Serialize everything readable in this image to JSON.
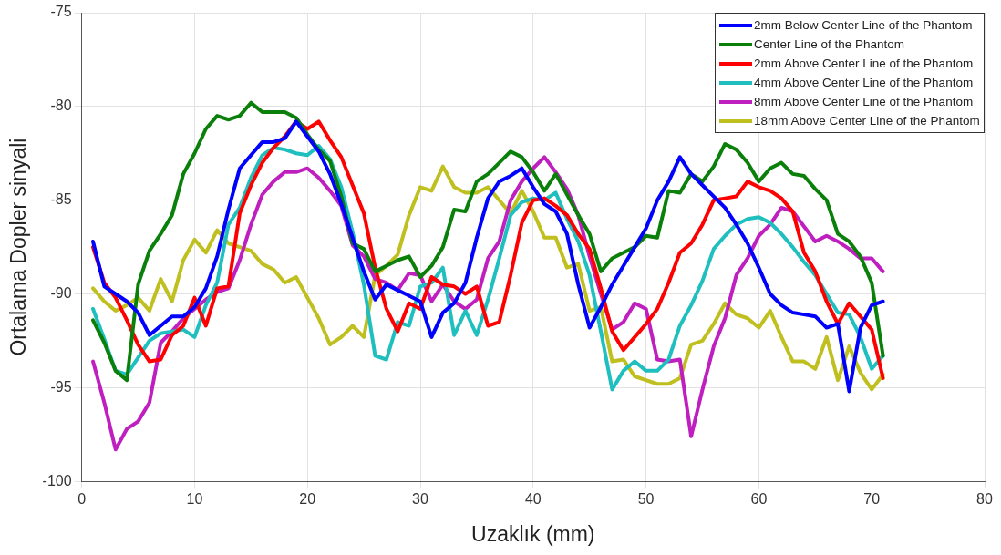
{
  "chart_data": {
    "type": "line",
    "xlabel": "Uzaklık (mm)",
    "ylabel": "Ortalama Dopler sinyali",
    "x": [
      1,
      2,
      3,
      4,
      5,
      6,
      7,
      8,
      9,
      10,
      11,
      12,
      13,
      14,
      15,
      16,
      17,
      18,
      19,
      20,
      21,
      22,
      23,
      24,
      25,
      26,
      27,
      28,
      29,
      30,
      31,
      32,
      33,
      34,
      35,
      36,
      37,
      38,
      39,
      40,
      41,
      42,
      43,
      44,
      45,
      46,
      47,
      48,
      49,
      50,
      51,
      52,
      53,
      54,
      55,
      56,
      57,
      58,
      59,
      60,
      61,
      62,
      63,
      64,
      65,
      66,
      67,
      68,
      69,
      70,
      71
    ],
    "xlim": [
      0,
      80
    ],
    "xticks": [
      0,
      10,
      20,
      30,
      40,
      50,
      60,
      70,
      80
    ],
    "ylim": [
      -100,
      -75
    ],
    "yticks": [
      -100,
      -95,
      -90,
      -85,
      -80,
      -75
    ],
    "grid": true,
    "legend": "top right",
    "marker": "none",
    "line_style": "solid",
    "series": [
      {
        "name": "2mm Below Center Line of the Phantom",
        "color": "#0000ff",
        "values": [
          -87.2,
          -89.6,
          -90.0,
          -90.4,
          -91.0,
          -92.2,
          -91.7,
          -91.2,
          -91.2,
          -90.7,
          -89.7,
          -88.0,
          -85.5,
          -83.3,
          -82.6,
          -81.9,
          -81.9,
          -81.7,
          -80.8,
          -81.6,
          -82.4,
          -83.6,
          -85.2,
          -87.0,
          -88.8,
          -90.3,
          -89.5,
          -89.8,
          -90.1,
          -90.4,
          -92.3,
          -91.0,
          -90.5,
          -89.4,
          -87.0,
          -84.9,
          -84.0,
          -83.7,
          -83.3,
          -84.3,
          -85.2,
          -85.6,
          -86.8,
          -89.5,
          -91.8,
          -90.7,
          -89.5,
          -88.5,
          -87.5,
          -86.5,
          -85.0,
          -84.0,
          -82.7,
          -83.6,
          -84.2,
          -84.8,
          -85.4,
          -86.3,
          -87.3,
          -88.6,
          -90.0,
          -90.6,
          -91.0,
          -91.1,
          -91.2,
          -91.8,
          -91.6,
          -95.2,
          -91.8,
          -90.6,
          -90.4
        ]
      },
      {
        "name": "Center Line of the Phantom",
        "color": "#0a800a",
        "values": [
          -91.4,
          -92.6,
          -94.1,
          -94.6,
          -89.5,
          -87.7,
          -86.8,
          -85.8,
          -83.6,
          -82.5,
          -81.2,
          -80.5,
          -80.7,
          -80.5,
          -79.8,
          -80.3,
          -80.3,
          -80.3,
          -80.6,
          -81.5,
          -82.3,
          -82.9,
          -84.8,
          -87.3,
          -87.6,
          -88.8,
          -88.5,
          -88.2,
          -88.0,
          -89.1,
          -88.5,
          -87.5,
          -85.5,
          -85.6,
          -84.0,
          -83.6,
          -83.0,
          -82.4,
          -82.7,
          -83.5,
          -84.5,
          -83.6,
          -84.7,
          -85.8,
          -86.8,
          -88.8,
          -88.1,
          -87.8,
          -87.5,
          -86.9,
          -87.0,
          -84.5,
          -84.6,
          -83.6,
          -84.0,
          -83.2,
          -82.0,
          -82.3,
          -83.0,
          -84.0,
          -83.3,
          -83.0,
          -83.6,
          -83.7,
          -84.4,
          -85.0,
          -86.8,
          -87.2,
          -88.0,
          -89.4,
          -93.3
        ]
      },
      {
        "name": "2mm Above Center Line of the Phantom",
        "color": "#ff0000",
        "values": [
          -87.5,
          -89.4,
          -90.2,
          -91.4,
          -92.7,
          -93.6,
          -93.5,
          -92.2,
          -91.7,
          -90.2,
          -91.7,
          -89.7,
          -89.6,
          -85.7,
          -84.2,
          -83.0,
          -82.2,
          -81.6,
          -80.8,
          -81.2,
          -80.8,
          -81.8,
          -82.7,
          -84.2,
          -85.7,
          -88.6,
          -90.8,
          -92.0,
          -90.5,
          -90.8,
          -89.1,
          -89.5,
          -89.6,
          -90.0,
          -89.6,
          -91.7,
          -91.5,
          -89.0,
          -86.2,
          -85.0,
          -84.9,
          -85.3,
          -85.8,
          -86.8,
          -87.6,
          -89.7,
          -92.0,
          -93.0,
          -92.3,
          -91.6,
          -90.8,
          -89.4,
          -87.8,
          -87.3,
          -86.3,
          -85.0,
          -84.9,
          -84.8,
          -84.0,
          -84.3,
          -84.5,
          -84.9,
          -85.6,
          -87.8,
          -88.8,
          -90.4,
          -91.6,
          -90.5,
          -91.2,
          -91.9,
          -94.5
        ]
      },
      {
        "name": "4mm Above Center Line of the Phantom",
        "color": "#1fbfbf",
        "values": [
          -90.8,
          -92.4,
          -94.1,
          -94.3,
          -93.4,
          -92.5,
          -92.1,
          -92.0,
          -91.9,
          -92.3,
          -90.6,
          -89.4,
          -86.3,
          -85.4,
          -83.8,
          -82.6,
          -82.2,
          -82.3,
          -82.5,
          -82.6,
          -82.1,
          -82.8,
          -84.3,
          -86.7,
          -89.5,
          -93.3,
          -93.5,
          -91.5,
          -91.7,
          -89.6,
          -89.4,
          -88.6,
          -92.2,
          -90.9,
          -92.2,
          -90.3,
          -88.1,
          -85.8,
          -85.1,
          -84.9,
          -85.0,
          -84.6,
          -86.0,
          -87.2,
          -89.0,
          -92.0,
          -95.1,
          -94.1,
          -93.6,
          -94.1,
          -94.1,
          -93.5,
          -91.7,
          -90.6,
          -89.3,
          -87.6,
          -86.9,
          -86.3,
          -86.0,
          -85.9,
          -86.2,
          -86.8,
          -87.5,
          -88.3,
          -89.0,
          -90.0,
          -91.0,
          -91.1,
          -92.3,
          -94.0,
          -93.3
        ]
      },
      {
        "name": "8mm Above Center Line of the Phantom",
        "color": "#bf1fbf",
        "values": [
          -93.6,
          -95.8,
          -98.3,
          -97.2,
          -96.8,
          -95.8,
          -92.6,
          -92.0,
          -91.3,
          -90.8,
          -90.3,
          -89.9,
          -89.7,
          -88.2,
          -86.3,
          -84.7,
          -84.0,
          -83.5,
          -83.5,
          -83.3,
          -83.8,
          -84.5,
          -85.3,
          -87.4,
          -88.0,
          -89.2,
          -89.4,
          -89.8,
          -88.9,
          -89.0,
          -90.4,
          -89.5,
          -90.4,
          -90.8,
          -90.3,
          -88.1,
          -87.2,
          -85.0,
          -84.0,
          -83.3,
          -82.7,
          -83.5,
          -84.4,
          -85.8,
          -88.0,
          -90.0,
          -91.9,
          -91.5,
          -90.5,
          -90.8,
          -93.5,
          -93.6,
          -93.5,
          -97.6,
          -95.1,
          -92.8,
          -91.3,
          -89.0,
          -88.1,
          -86.9,
          -86.3,
          -85.4,
          -85.6,
          -86.4,
          -87.2,
          -86.9,
          -87.2,
          -87.6,
          -88.1,
          -88.1,
          -88.8
        ]
      },
      {
        "name": "18mm Above Center Line of the Phantom",
        "color": "#bfbf1f",
        "values": [
          -89.7,
          -90.4,
          -90.9,
          -90.6,
          -90.2,
          -90.9,
          -89.2,
          -90.4,
          -88.2,
          -87.1,
          -87.8,
          -86.6,
          -87.3,
          -87.5,
          -87.7,
          -88.4,
          -88.7,
          -89.4,
          -89.1,
          -90.2,
          -91.3,
          -92.7,
          -92.3,
          -91.7,
          -92.3,
          -89.0,
          -88.5,
          -87.9,
          -85.8,
          -84.3,
          -84.5,
          -83.2,
          -84.3,
          -84.6,
          -84.6,
          -84.3,
          -85.0,
          -85.7,
          -84.5,
          -85.6,
          -87.0,
          -87.0,
          -88.6,
          -88.4,
          -90.9,
          -90.7,
          -93.6,
          -93.5,
          -94.4,
          -94.6,
          -94.8,
          -94.8,
          -94.5,
          -92.7,
          -92.5,
          -91.6,
          -90.5,
          -91.1,
          -91.3,
          -91.8,
          -90.9,
          -92.3,
          -93.6,
          -93.6,
          -94.0,
          -92.3,
          -94.6,
          -92.8,
          -94.2,
          -95.1,
          -94.3
        ]
      }
    ]
  }
}
